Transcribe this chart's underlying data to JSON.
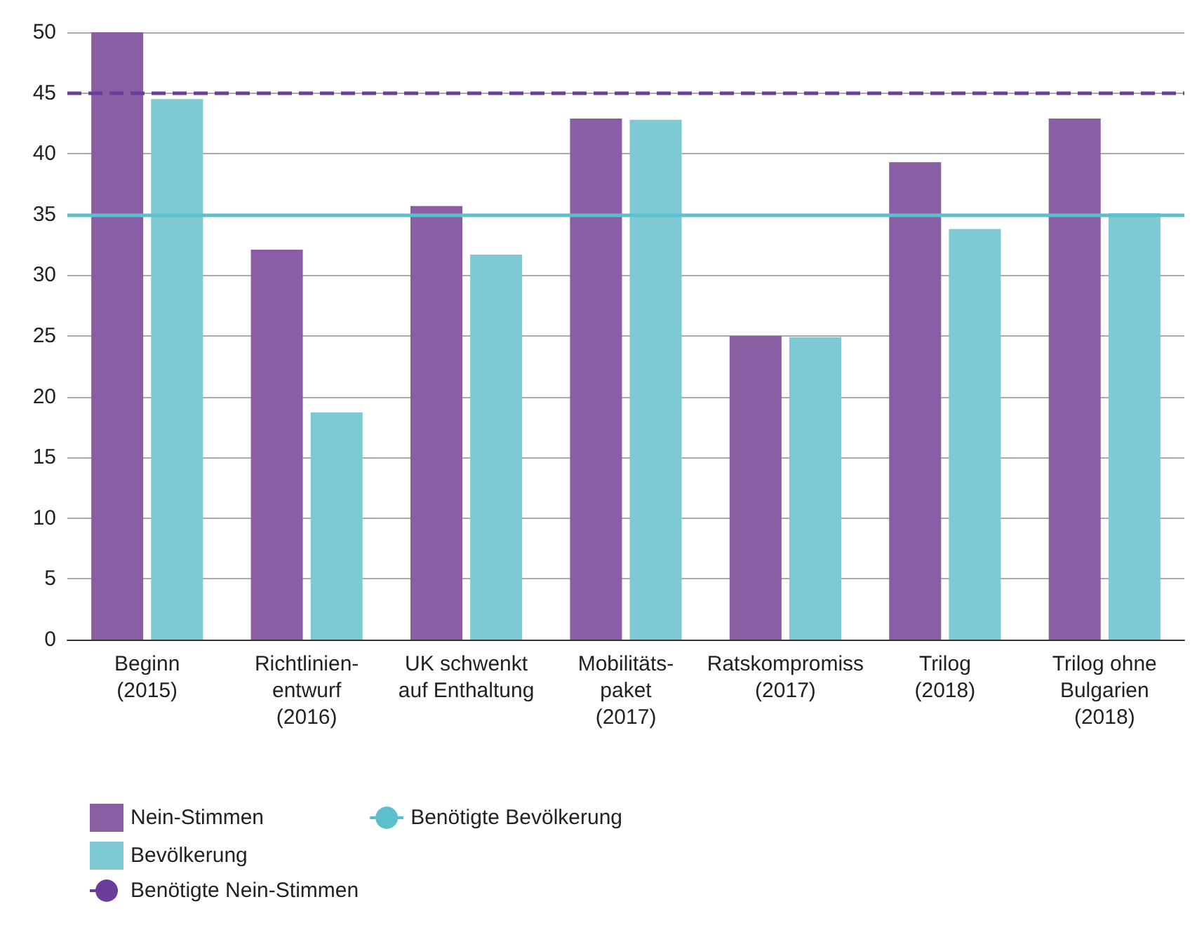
{
  "chart_data": {
    "type": "bar",
    "categories": [
      "Beginn\n(2015)",
      "Richtlinien-\nentwurf\n(2016)",
      "UK schwenkt\nauf Enthaltung",
      "Mobilitäts-\npaket\n(2017)",
      "Ratskompromiss\n(2017)",
      "Trilog\n(2018)",
      "Trilog ohne\nBulgarien\n(2018)"
    ],
    "series": [
      {
        "name": "Nein-Stimmen",
        "color": "#8a5ea5",
        "values": [
          50,
          32.1,
          35.7,
          42.9,
          25,
          39.3,
          42.9
        ]
      },
      {
        "name": "Bevölkerung",
        "color": "#7ecad4",
        "values": [
          44.5,
          18.7,
          31.7,
          42.8,
          24.9,
          33.8,
          35.1
        ]
      }
    ],
    "ref_lines": [
      {
        "axis": "y",
        "value": 45,
        "label": "Benötigte Nein-Stimmen",
        "color": "#6a3d9a",
        "line_style": "dashed"
      },
      {
        "axis": "y",
        "value": 35,
        "label": "Benötigte Bevölkerung",
        "color": "#5bc0cc",
        "line_style": "solid"
      }
    ],
    "ylim": [
      0,
      50
    ],
    "yticks": [
      0,
      5,
      10,
      15,
      20,
      25,
      30,
      35,
      40,
      45,
      50
    ],
    "grid": "y",
    "legend": "bottom left"
  }
}
